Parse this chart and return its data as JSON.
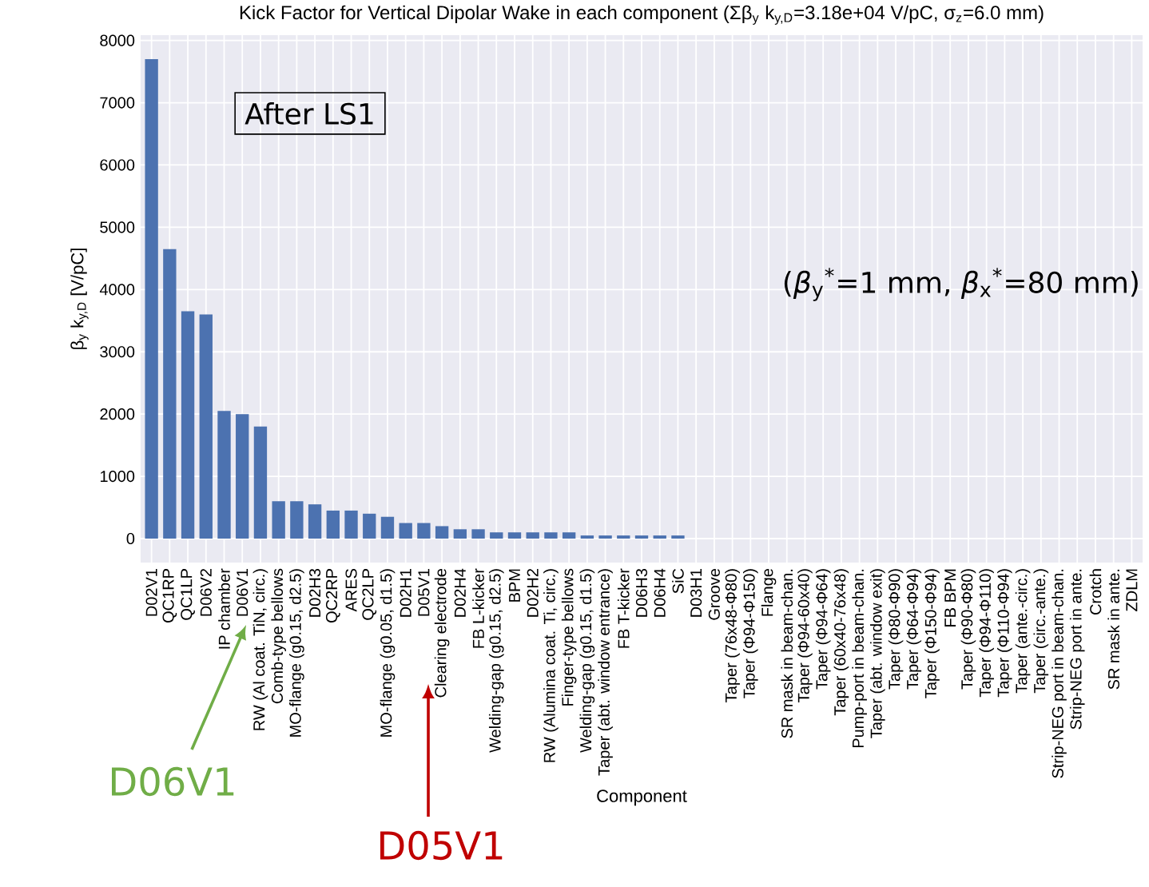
{
  "chart_data": {
    "type": "bar",
    "title": "Kick Factor for Vertical Dipolar Wake in each component (Σβ$_{y}$ k$_{y,D}$=3.18e+04 V/pC, σ$_{z}$=6.0 mm)",
    "xlabel": "Component",
    "ylabel": "β$_{y}$ k$_{y,D}$ [V/pC]",
    "categories": [
      "D02V1",
      "QC1RP",
      "QC1LP",
      "D06V2",
      "IP chamber",
      "D06V1",
      "RW (Al coat. TiN, circ.)",
      "Comb-type bellows",
      "MO-flange (g0.15, d2.5)",
      "D02H3",
      "QC2RP",
      "ARES",
      "QC2LP",
      "MO-flange (g0.05, d1.5)",
      "D02H1",
      "D05V1",
      "Clearing electrode",
      "D02H4",
      "FB L-kicker",
      "Welding-gap (g0.15, d2.5)",
      "BPM",
      "D02H2",
      "RW (Alumina coat. Ti, circ.)",
      "Finger-type bellows",
      "Welding-gap (g0.15, d1.5)",
      "Taper (abt. window entrance)",
      "FB T-kicker",
      "D06H3",
      "D06H4",
      "SiC",
      "D03H1",
      "Groove",
      "Taper (76x48-Φ80)",
      "Taper (Φ94-Φ150)",
      "Flange",
      "SR mask in beam-chan.",
      "Taper (Φ94-60x40)",
      "Taper (Φ94-Φ64)",
      "Taper (60x40-76x48)",
      "Pump-port in beam-chan.",
      "Taper (abt. window exit)",
      "Taper (Φ80-Φ90)",
      "Taper (Φ64-Φ94)",
      "Taper (Φ150-Φ94)",
      "FB BPM",
      "Taper (Φ90-Φ80)",
      "Taper (Φ94-Φ110)",
      "Taper (Φ110-Φ94)",
      "Taper (ante.-circ.)",
      "Taper (circ.-ante.)",
      "Strip-NEG port in beam-chan.",
      "Strip-NEG port in ante.",
      "Crotch",
      "SR mask in ante.",
      "ZDLM"
    ],
    "values": [
      7700,
      4650,
      3650,
      3600,
      2050,
      2000,
      1800,
      600,
      600,
      550,
      450,
      450,
      400,
      350,
      250,
      250,
      200,
      150,
      150,
      100,
      100,
      100,
      100,
      100,
      50,
      50,
      50,
      50,
      50,
      50,
      0,
      0,
      0,
      0,
      0,
      0,
      0,
      0,
      0,
      0,
      0,
      0,
      0,
      0,
      0,
      0,
      0,
      0,
      0,
      0,
      0,
      0,
      0,
      0,
      0
    ],
    "color": "#4c72b0",
    "ylim": [
      -385,
      8085
    ],
    "yticks": [
      0,
      1000,
      2000,
      3000,
      4000,
      5000,
      6000,
      7000,
      8000
    ],
    "grid": true,
    "annotations": [
      "After LS1",
      "(*β*$_{y}$$^{*}$=1 mm, *β*$_{x}$$^{*}$=80 mm)",
      "D06V1",
      "D05V1"
    ]
  }
}
